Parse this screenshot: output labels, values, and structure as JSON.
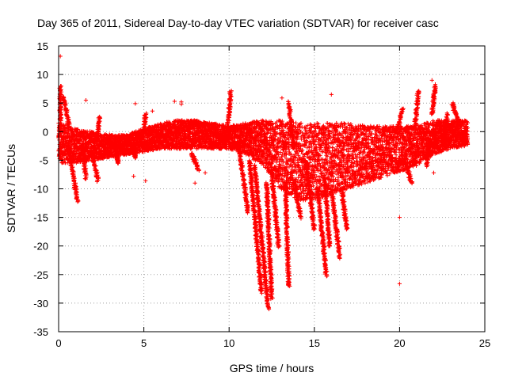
{
  "chart_data": {
    "type": "scatter",
    "title": "Day 365 of 2011, Sidereal Day-to-day VTEC variation (SDTVAR) for receiver casc",
    "xlabel": "GPS time / hours",
    "ylabel": "SDTVAR / TECUs",
    "xlim": [
      0,
      25
    ],
    "ylim": [
      -35,
      15
    ],
    "x_ticks": [
      "0",
      "5",
      "10",
      "15",
      "20",
      "25"
    ],
    "y_ticks": [
      "15",
      "10",
      "5",
      "0",
      "-5",
      "-10",
      "-15",
      "-20",
      "-25",
      "-30",
      "-35"
    ],
    "grid": true,
    "marker": "+",
    "series_color": "#ff0000",
    "band": {
      "description": "dense band of points",
      "x": [
        0.0,
        1.0,
        2.0,
        3.0,
        4.0,
        5.0,
        6.0,
        7.0,
        8.0,
        9.0,
        10.0,
        11.0,
        12.0,
        13.0,
        14.0,
        15.0,
        16.0,
        17.0,
        18.0,
        19.0,
        20.0,
        21.0,
        22.0,
        23.0,
        24.0
      ],
      "upper": [
        1.5,
        0.5,
        0.0,
        -0.5,
        -0.5,
        0.5,
        1.5,
        2.0,
        2.0,
        1.5,
        1.0,
        1.5,
        2.0,
        2.0,
        1.5,
        1.5,
        1.5,
        1.5,
        1.0,
        1.0,
        1.0,
        1.0,
        2.0,
        2.0,
        2.0
      ],
      "lower": [
        -5.5,
        -5.5,
        -5.0,
        -4.5,
        -4.0,
        -3.5,
        -3.0,
        -3.0,
        -3.0,
        -3.0,
        -3.0,
        -4.0,
        -6.0,
        -10.0,
        -12.0,
        -12.0,
        -11.0,
        -10.0,
        -9.0,
        -8.0,
        -7.0,
        -6.0,
        -4.0,
        -3.0,
        -2.5
      ]
    },
    "spikes": [
      {
        "x0": 0.1,
        "x1": 0.1,
        "y0": 0,
        "y1": 8
      },
      {
        "x0": 0.3,
        "x1": 0.6,
        "y0": 6,
        "y1": 1
      },
      {
        "x0": 0.6,
        "x1": 1.1,
        "y0": -3,
        "y1": -12
      },
      {
        "x0": 1.4,
        "x1": 1.6,
        "y0": -3,
        "y1": -8
      },
      {
        "x0": 2.0,
        "x1": 2.3,
        "y0": -4,
        "y1": -8.5
      },
      {
        "x0": 2.3,
        "x1": 2.4,
        "y0": -1,
        "y1": 2.5
      },
      {
        "x0": 3.4,
        "x1": 3.5,
        "y0": -4,
        "y1": -5.5
      },
      {
        "x0": 4.4,
        "x1": 4.5,
        "y0": -3,
        "y1": -4.5
      },
      {
        "x0": 5.0,
        "x1": 5.1,
        "y0": 0,
        "y1": 3
      },
      {
        "x0": 7.8,
        "x1": 8.2,
        "y0": -4,
        "y1": -6.5
      },
      {
        "x0": 9.9,
        "x1": 10.1,
        "y0": 0,
        "y1": 7
      },
      {
        "x0": 10.6,
        "x1": 11.1,
        "y0": -3,
        "y1": -14
      },
      {
        "x0": 11.2,
        "x1": 11.9,
        "y0": -5,
        "y1": -28
      },
      {
        "x0": 11.5,
        "x1": 12.3,
        "y0": -6,
        "y1": -31
      },
      {
        "x0": 12.2,
        "x1": 12.5,
        "y0": -9,
        "y1": -29
      },
      {
        "x0": 12.5,
        "x1": 12.9,
        "y0": -7,
        "y1": -20
      },
      {
        "x0": 13.3,
        "x1": 13.5,
        "y0": -9,
        "y1": -27
      },
      {
        "x0": 13.5,
        "x1": 13.8,
        "y0": 5,
        "y1": -3
      },
      {
        "x0": 13.8,
        "x1": 14.2,
        "y0": -9,
        "y1": -15
      },
      {
        "x0": 14.5,
        "x1": 15.0,
        "y0": -5,
        "y1": -17
      },
      {
        "x0": 15.2,
        "x1": 15.7,
        "y0": -10,
        "y1": -25
      },
      {
        "x0": 15.6,
        "x1": 15.9,
        "y0": -8,
        "y1": -20
      },
      {
        "x0": 16.0,
        "x1": 16.5,
        "y0": -10,
        "y1": -22
      },
      {
        "x0": 16.6,
        "x1": 16.9,
        "y0": -10,
        "y1": -17
      },
      {
        "x0": 19.8,
        "x1": 20.2,
        "y0": 0,
        "y1": 4
      },
      {
        "x0": 20.4,
        "x1": 20.7,
        "y0": -6,
        "y1": -9
      },
      {
        "x0": 20.9,
        "x1": 21.1,
        "y0": 1,
        "y1": 7
      },
      {
        "x0": 21.6,
        "x1": 21.7,
        "y0": -6,
        "y1": -2
      },
      {
        "x0": 21.9,
        "x1": 22.1,
        "y0": 3,
        "y1": 8
      },
      {
        "x0": 21.9,
        "x1": 22.3,
        "y0": 0,
        "y1": -3
      },
      {
        "x0": 22.3,
        "x1": 22.5,
        "y0": 2,
        "y1": -2
      },
      {
        "x0": 22.6,
        "x1": 22.8,
        "y0": -1,
        "y1": 3
      },
      {
        "x0": 23.1,
        "x1": 23.4,
        "y0": 5,
        "y1": 2
      }
    ],
    "outliers": [
      {
        "x": 0.1,
        "y": 13.2
      },
      {
        "x": 1.6,
        "y": 5.5
      },
      {
        "x": 4.5,
        "y": 4.9
      },
      {
        "x": 5.5,
        "y": 3.6
      },
      {
        "x": 6.8,
        "y": 5.3
      },
      {
        "x": 7.2,
        "y": 5.2
      },
      {
        "x": 7.2,
        "y": 4.8
      },
      {
        "x": 13.1,
        "y": 5.9
      },
      {
        "x": 16.0,
        "y": 6.5
      },
      {
        "x": 20.0,
        "y": -15.0
      },
      {
        "x": 20.0,
        "y": -26.6
      },
      {
        "x": 4.4,
        "y": -7.8
      },
      {
        "x": 5.1,
        "y": -8.6
      },
      {
        "x": 8.0,
        "y": -9.0
      },
      {
        "x": 8.6,
        "y": -7.2
      },
      {
        "x": 22.0,
        "y": -7.2
      },
      {
        "x": 21.9,
        "y": 9.0
      }
    ]
  }
}
